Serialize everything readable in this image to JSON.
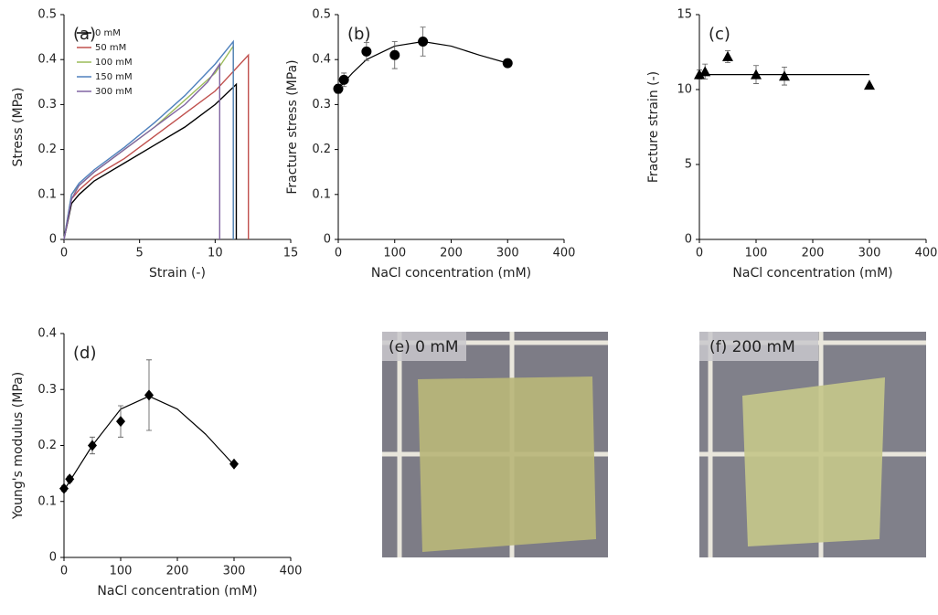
{
  "chart_data": [
    {
      "type": "line",
      "annotation": "(a)",
      "x_label": "Strain (-)",
      "y_label": "Stress (MPa)",
      "xlim": [
        0,
        15
      ],
      "xticks": [
        0,
        5,
        10,
        15
      ],
      "ylim": [
        0,
        0.5
      ],
      "yticks": [
        0,
        0.1,
        0.2,
        0.3,
        0.4,
        0.5
      ],
      "series": [
        {
          "name": "0 mM",
          "color": "#000000",
          "x": [
            0,
            0.5,
            1,
            2,
            4,
            6,
            8,
            10,
            11.4,
            11.4
          ],
          "values": [
            0,
            0.08,
            0.1,
            0.13,
            0.17,
            0.21,
            0.25,
            0.3,
            0.345,
            0
          ]
        },
        {
          "name": "50 mM",
          "color": "#c0504d",
          "x": [
            0,
            0.5,
            1,
            2,
            4,
            6,
            8,
            10,
            12.2,
            12.2
          ],
          "values": [
            0,
            0.09,
            0.11,
            0.14,
            0.18,
            0.23,
            0.28,
            0.33,
            0.41,
            0
          ]
        },
        {
          "name": "100 mM",
          "color": "#9bbb59",
          "x": [
            0,
            0.5,
            1,
            2,
            4,
            6,
            8,
            10,
            11.2,
            11.2
          ],
          "values": [
            0,
            0.1,
            0.12,
            0.15,
            0.2,
            0.25,
            0.31,
            0.37,
            0.43,
            0
          ]
        },
        {
          "name": "150 mM",
          "color": "#4f81bd",
          "x": [
            0,
            0.5,
            1,
            2,
            4,
            6,
            8,
            10,
            11.2,
            11.2
          ],
          "values": [
            0,
            0.1,
            0.125,
            0.155,
            0.205,
            0.26,
            0.32,
            0.39,
            0.44,
            0
          ]
        },
        {
          "name": "300 mM",
          "color": "#8064a2",
          "x": [
            0,
            0.5,
            1,
            2,
            4,
            6,
            8,
            9.5,
            10.3,
            10.3
          ],
          "values": [
            0,
            0.09,
            0.12,
            0.15,
            0.2,
            0.25,
            0.3,
            0.35,
            0.39,
            0
          ]
        }
      ]
    },
    {
      "type": "scatter",
      "annotation": "(b)",
      "x_label": "NaCl concentration (mM)",
      "y_label": "Fracture stress (MPa)",
      "xlim": [
        0,
        400
      ],
      "xticks": [
        0,
        100,
        200,
        300,
        400
      ],
      "ylim": [
        0,
        0.5
      ],
      "yticks": [
        0,
        0.1,
        0.2,
        0.3,
        0.4,
        0.5
      ],
      "marker": "circle",
      "color": "#000000",
      "x": [
        0,
        10,
        50,
        100,
        150,
        300
      ],
      "values": [
        0.335,
        0.355,
        0.418,
        0.41,
        0.44,
        0.392
      ],
      "errors": [
        0.01,
        0.015,
        0.02,
        0.03,
        0.032,
        0.005
      ],
      "fit": {
        "x": [
          0,
          25,
          50,
          100,
          150,
          200,
          250,
          300
        ],
        "values": [
          0.335,
          0.37,
          0.4,
          0.43,
          0.44,
          0.43,
          0.41,
          0.392
        ]
      }
    },
    {
      "type": "scatter",
      "annotation": "(c)",
      "x_label": "NaCl concentration (mM)",
      "y_label": "Fracture strain (-)",
      "xlim": [
        0,
        400
      ],
      "xticks": [
        0,
        100,
        200,
        300,
        400
      ],
      "ylim": [
        0,
        15
      ],
      "yticks": [
        0,
        5,
        10,
        15
      ],
      "marker": "triangle",
      "color": "#000000",
      "x": [
        0,
        10,
        50,
        100,
        150,
        300
      ],
      "values": [
        11,
        11.2,
        12.2,
        11,
        10.9,
        10.3
      ],
      "errors": [
        0.3,
        0.5,
        0.4,
        0.6,
        0.6,
        0
      ],
      "fit": {
        "x": [
          0,
          300
        ],
        "values": [
          11,
          11
        ]
      }
    },
    {
      "type": "scatter",
      "annotation": "(d)",
      "x_label": "NaCl concentration (mM)",
      "y_label": "Young's modulus (MPa)",
      "xlim": [
        0,
        400
      ],
      "xticks": [
        0,
        100,
        200,
        300,
        400
      ],
      "ylim": [
        0,
        0.4
      ],
      "yticks": [
        0,
        0.1,
        0.2,
        0.3,
        0.4
      ],
      "marker": "diamond",
      "color": "#000000",
      "x": [
        0,
        10,
        50,
        100,
        150,
        300
      ],
      "values": [
        0.123,
        0.14,
        0.2,
        0.243,
        0.29,
        0.167
      ],
      "errors": [
        0.005,
        0.005,
        0.015,
        0.028,
        0.063,
        0.003
      ],
      "fit": {
        "x": [
          0,
          50,
          100,
          150,
          200,
          250,
          300
        ],
        "values": [
          0.12,
          0.2,
          0.265,
          0.288,
          0.265,
          0.22,
          0.165
        ]
      }
    }
  ],
  "photos": [
    {
      "label": "(e) 0 mM"
    },
    {
      "label": "(f) 200 mM"
    }
  ]
}
